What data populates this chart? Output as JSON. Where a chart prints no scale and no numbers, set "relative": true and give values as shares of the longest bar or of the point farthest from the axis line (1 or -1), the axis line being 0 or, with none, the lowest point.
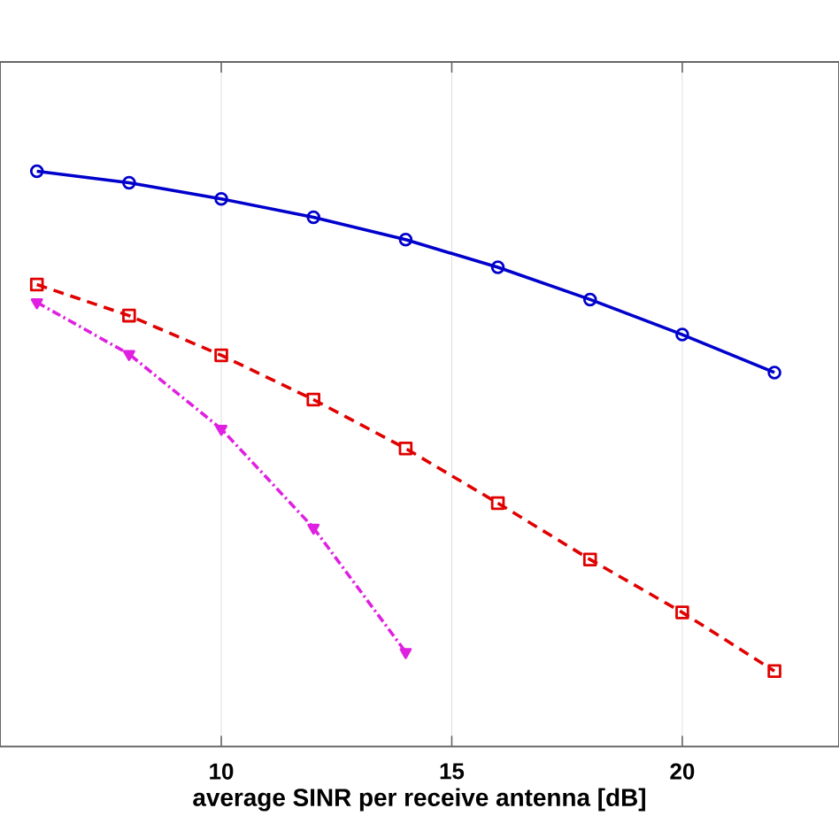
{
  "chart_data": {
    "type": "line",
    "xlabel": "average SINR per receive antenna [dB]",
    "relative": true,
    "x": [
      6,
      8,
      10,
      12,
      14,
      16,
      18,
      20,
      22
    ],
    "xlim": [
      5.2,
      23.4
    ],
    "xticks": [
      10,
      15,
      20
    ],
    "grid": "x",
    "series": [
      {
        "color": "#0000cc",
        "marker": "circle",
        "line_style": "solid",
        "values": [
          1,
          0.98,
          0.952,
          0.92,
          0.881,
          0.833,
          0.777,
          0.716,
          0.65
        ]
      },
      {
        "color": "#e00000",
        "marker": "square",
        "line_style": "dashed",
        "values": [
          0.803,
          0.749,
          0.68,
          0.603,
          0.518,
          0.423,
          0.325,
          0.233,
          0.131
        ]
      },
      {
        "color": "#e020e0",
        "marker": "triangle",
        "line_style": "dashdot",
        "values": [
          0.772,
          0.682,
          0.552,
          0.38,
          0.164,
          null,
          null,
          null,
          null
        ]
      }
    ]
  }
}
